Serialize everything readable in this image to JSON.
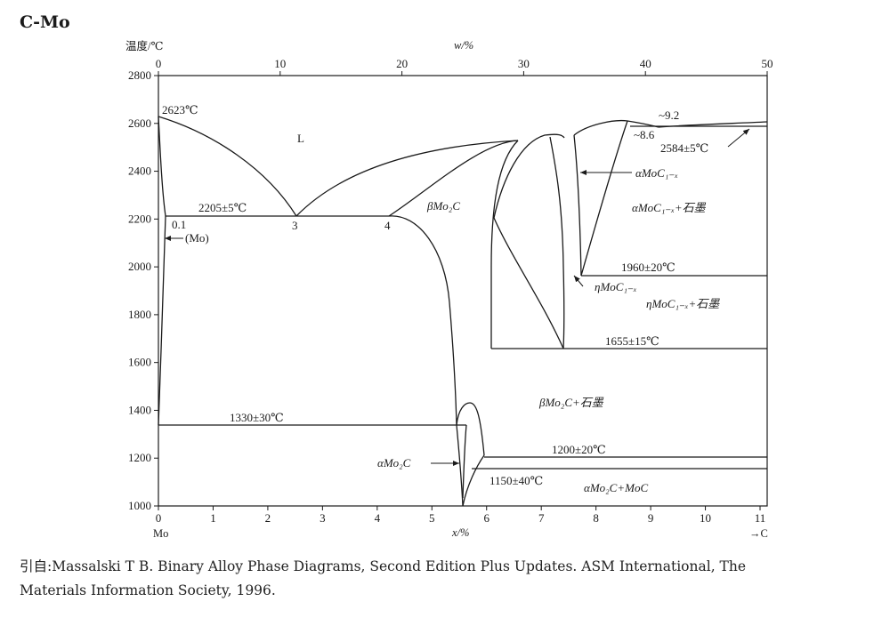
{
  "title": "C-Mo",
  "axes": {
    "y_label": "温度/℃",
    "top_label": "w/%",
    "bottom_label": "x/%",
    "left_element": "Mo",
    "right_element": "→C",
    "y_ticks": [
      "2800",
      "2600",
      "2400",
      "2200",
      "2000",
      "1800",
      "1600",
      "1400",
      "1200",
      "1000"
    ],
    "top_ticks": [
      "0",
      "10",
      "20",
      "30",
      "40",
      "50"
    ],
    "bottom_ticks": [
      "0",
      "1",
      "2",
      "3",
      "4",
      "5",
      "6",
      "7",
      "8",
      "9",
      "10",
      "11"
    ],
    "y_range": [
      1000,
      2800
    ],
    "x_range_atpct": [
      0,
      11.13
    ],
    "w_range_pct": [
      0,
      50
    ]
  },
  "annotations": {
    "mo_melting": "2623℃",
    "eutectic_l_mo": "2205±5℃",
    "solubility": "0.1",
    "mo_phase": "(Mo)",
    "point_3": "3",
    "point_4": "4",
    "liquid": "L",
    "beta_mo2c": "βMo₂C",
    "alpha_moc_arrow": "αMoC₁₋ₓ",
    "alpha_moc_graphite": "αMoC₁₋ₓ+石墨",
    "approx_92": "~9.2",
    "approx_86": "~8.6",
    "eutectic_graphite": "2584±5℃",
    "iso_1960": "1960±20℃",
    "eta_moc": "ηMoC₁₋ₓ",
    "eta_moc_graphite": "ηMoC₁₋ₓ+石墨",
    "iso_1655": "1655±15℃",
    "iso_1330": "1330±30℃",
    "beta_graphite": "βMo₂C+石墨",
    "iso_1200": "1200±20℃",
    "alpha_mo2c": "αMo₂C",
    "iso_1150": "1150±40℃",
    "alpha_mo2c_moc": "αMo₂C+MoC"
  },
  "citation": {
    "line1": "引自:Massalski T B. Binary Alloy Phase Diagrams, Second Edition Plus Updates. ASM International, The",
    "line2": "Materials Information Society, 1996."
  },
  "colors": {
    "line": "#1a1a1a",
    "background": "#ffffff"
  }
}
